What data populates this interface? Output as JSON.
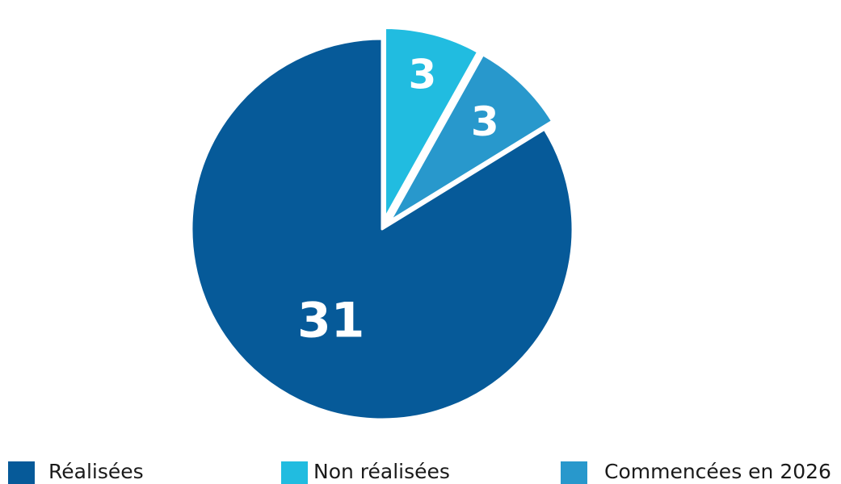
{
  "chart_data": {
    "type": "pie",
    "title": "",
    "categories": [
      "Réalisées",
      "Non réalisées",
      "Commencées en 2026"
    ],
    "values": [
      31,
      3,
      3
    ],
    "data_labels": [
      "31",
      "3",
      "3"
    ],
    "colors": [
      "#065a99",
      "#21bce0",
      "#2898cc"
    ],
    "exploded": [
      false,
      true,
      true
    ],
    "start": "12 o'clock",
    "direction": "counterclockwise",
    "legend": {
      "position": "bottom",
      "entries": [
        "Réalisées",
        "Non réalisées",
        "Commencées en 2026"
      ]
    }
  }
}
